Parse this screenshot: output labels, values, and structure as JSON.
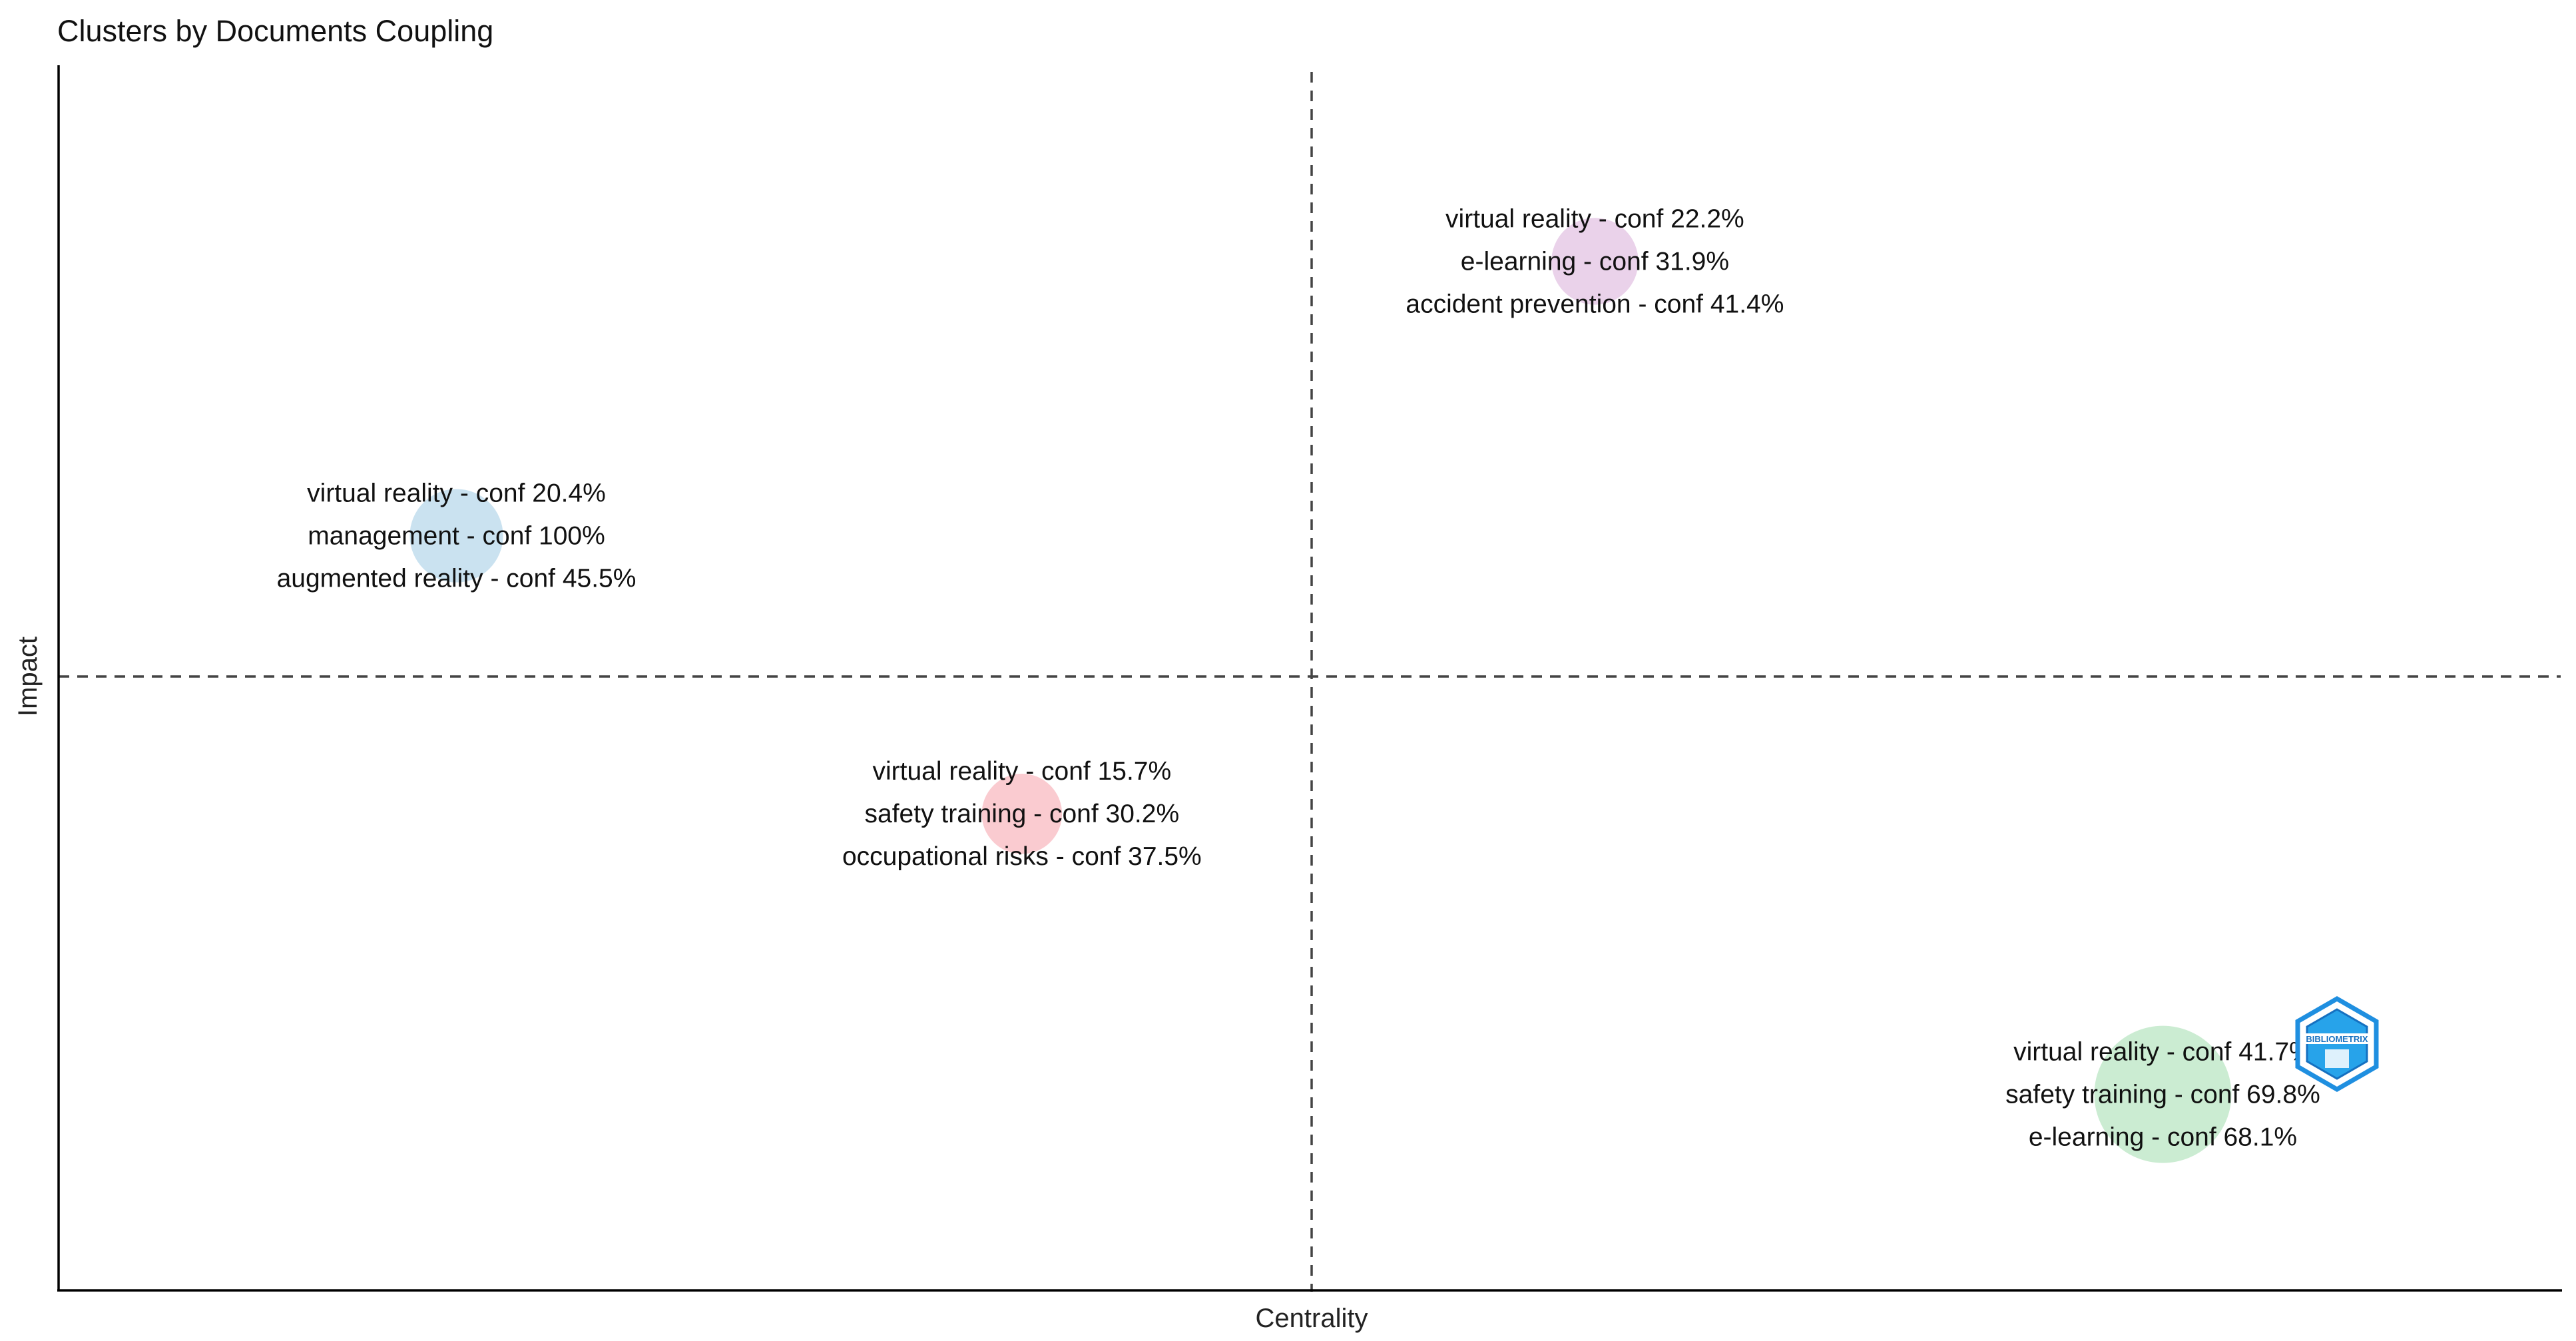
{
  "chart_data": {
    "type": "scatter",
    "title": "Clusters by Documents Coupling",
    "xlabel": "Centrality",
    "ylabel": "Impact",
    "xlim": [
      0,
      1
    ],
    "ylim": [
      0,
      1
    ],
    "x_ticks": false,
    "y_ticks": false,
    "grid": false,
    "quadrant_lines": {
      "x": 0.5,
      "y": 0.5
    },
    "clusters": [
      {
        "x": 0.159,
        "y": 0.616,
        "size": 0.43,
        "color": "#a6cfe6",
        "labels": [
          "virtual reality - conf 20.4%",
          "management - conf 100%",
          "augmented reality - conf 45.5%"
        ]
      },
      {
        "x": 0.614,
        "y": 0.84,
        "size": 0.36,
        "color": "#dcb4dc",
        "labels": [
          "virtual reality - conf 22.2%",
          "e-learning - conf 31.9%",
          "accident prevention - conf 41.4%"
        ]
      },
      {
        "x": 0.385,
        "y": 0.389,
        "size": 0.29,
        "color": "#f7a8b0",
        "labels": [
          "virtual reality - conf 15.7%",
          "safety training - conf 30.2%",
          "occupational risks - conf 37.5%"
        ]
      },
      {
        "x": 0.841,
        "y": 0.16,
        "size": 0.9,
        "color": "#a8e0b4",
        "labels": [
          "virtual reality - conf 41.7%",
          "safety training - conf 69.8%",
          "e-learning - conf 68.1%"
        ]
      }
    ]
  },
  "logo": {
    "text": "BIBLIOMETRIX",
    "color": "#1f8fe0"
  }
}
